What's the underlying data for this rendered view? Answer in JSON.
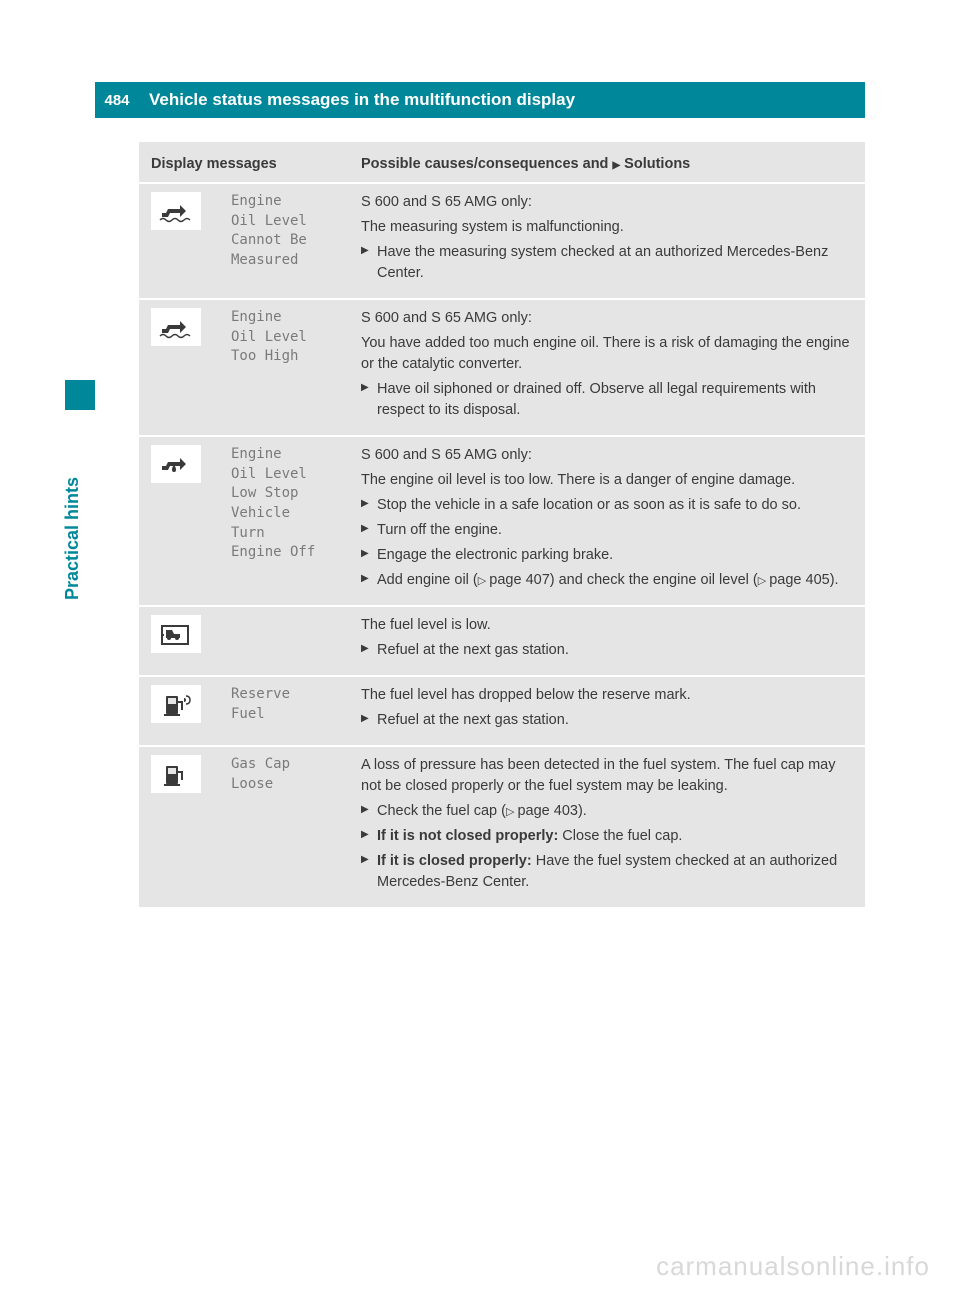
{
  "page_number": "484",
  "header_title": "Vehicle status messages in the multifunction display",
  "side_label": "Practical hints",
  "table": {
    "header_left": "Display messages",
    "header_right_prefix": "Possible causes/consequences and ",
    "header_right_suffix": " Solutions"
  },
  "rows": [
    {
      "icon": "oil-wavy",
      "msg": "Engine\nOil Level\nCannot Be\nMeasured",
      "paras": [
        "S 600 and S 65 AMG only:",
        "The measuring system is malfunctioning."
      ],
      "items": [
        "Have the measuring system checked at an authorized Mercedes-Benz Center."
      ]
    },
    {
      "icon": "oil-wavy",
      "msg": "Engine\nOil Level\nToo High",
      "paras": [
        "S 600 and S 65 AMG only:",
        "You have added too much engine oil. There is a risk of damaging the engine or the catalytic converter."
      ],
      "items": [
        "Have oil siphoned or drained off. Observe all legal requirements with respect to its disposal."
      ]
    },
    {
      "icon": "oil-drop",
      "msg": "Engine\nOil Level\nLow Stop\nVehicle\nTurn\nEngine Off",
      "paras": [
        "S 600 and S 65 AMG only:",
        "The engine oil level is too low. There is a danger of engine damage."
      ],
      "items": [
        "Stop the vehicle in a safe location or as soon as it is safe to do so.",
        "Turn off the engine.",
        "Engage the electronic parking brake.",
        "Add engine oil (|PAGE|page 407) and check the engine oil level (|PAGE|page 405)."
      ]
    },
    {
      "icon": "fuel-car",
      "msg": "",
      "paras": [
        "The fuel level is low."
      ],
      "items": [
        "Refuel at the next gas station."
      ]
    },
    {
      "icon": "fuel-pump-alert",
      "msg": "Reserve\nFuel",
      "paras": [
        "The fuel level has dropped below the reserve mark."
      ],
      "items": [
        "Refuel at the next gas station."
      ]
    },
    {
      "icon": "fuel-pump",
      "msg": "Gas Cap\nLoose",
      "paras": [
        "A loss of pressure has been detected in the fuel system. The fuel cap may not be closed properly or the fuel system may be leaking."
      ],
      "items": [
        "Check the fuel cap (|PAGE|page 403).",
        "|BOLD|If it is not closed properly:|/BOLD| Close the fuel cap.",
        "|BOLD|If it is closed properly:|/BOLD| Have the fuel system checked at an authorized Mercedes-Benz Center."
      ]
    }
  ],
  "icons": {
    "oil-wavy": "<path d='M4 16 L8 16 L10 12 L22 12 L22 8 L28 14 L22 20 L22 16 L12 16 L10 20 L4 20 Z' fill='#3a3a3a'/><path d='M2 23 Q5 20 8 23 T14 23 T20 23 T26 23 T32 23' stroke='#3a3a3a' stroke-width='1.5' fill='none'/>",
    "oil-drop": "<path d='M4 16 L8 16 L10 12 L22 12 L22 8 L28 14 L22 20 L22 16 L12 16 L10 20 L4 20 Z' fill='#3a3a3a'/><path d='M14 20 Q14 17 16 15 Q18 17 18 20 Q18 22 16 22 Q14 22 14 20 Z' fill='#3a3a3a'/>",
    "fuel-car": "<rect x='4' y='6' width='26' height='18' fill='none' stroke='#3a3a3a' stroke-width='2'/><path d='M8 10 L14 10 L16 14 L22 14 L22 18 L8 18 Z' fill='#3a3a3a'/><circle cx='11' cy='18' r='2' fill='#3a3a3a'/><circle cx='19' cy='18' r='2' fill='#3a3a3a'/><path d='M6 15 L4 15' stroke='#3a3a3a' stroke-width='2'/>",
    "fuel-pump-alert": "<rect x='8' y='6' width='12' height='18' rx='1' fill='#3a3a3a'/><rect x='10' y='8' width='8' height='6' fill='#e5e5e5'/><path d='M20 12 L24 12 L24 20' stroke='#3a3a3a' stroke-width='2' fill='none'/><rect x='6' y='24' width='16' height='2' fill='#3a3a3a'/><path d='M26 8 Q28 8 28 10 Q28 12 26 12' fill='#3a3a3a'/><path d='M28 6 Q32 6 32 10 Q32 14 28 14' stroke='#3a3a3a' stroke-width='1.5' fill='none'/>",
    "fuel-pump": "<rect x='8' y='6' width='12' height='18' rx='1' fill='#3a3a3a'/><rect x='10' y='8' width='8' height='6' fill='#e5e5e5'/><path d='M20 12 L24 12 L24 20' stroke='#3a3a3a' stroke-width='2' fill='none'/><rect x='6' y='24' width='16' height='2' fill='#3a3a3a'/>"
  },
  "watermark": "carmanualsonline.info",
  "colors": {
    "teal": "#00889a",
    "bg_grey": "#e5e5e5",
    "text": "#3a3a3a",
    "msg_grey": "#7a7a7a"
  }
}
